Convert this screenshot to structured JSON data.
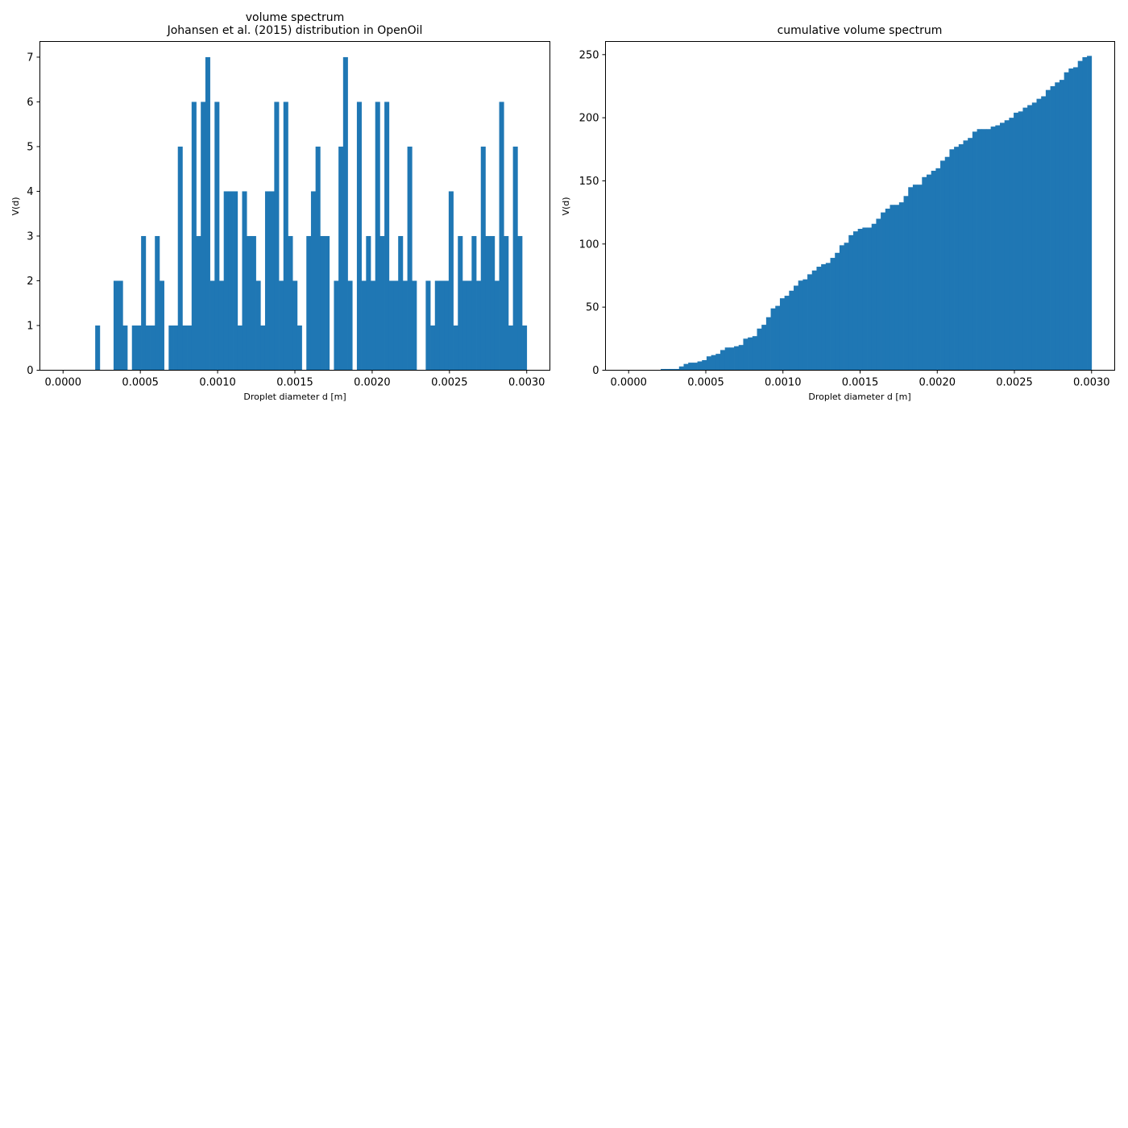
{
  "chart_data": [
    {
      "type": "bar",
      "title": "volume spectrum",
      "subtitle": "Johansen et al. (2015) distribution in OpenOil",
      "xlabel": "Droplet diameter d [m]",
      "ylabel": "V(d)",
      "xlim": [
        -0.00015,
        0.00315
      ],
      "ylim": [
        0,
        7.35
      ],
      "x_ticks": [
        "0.0000",
        "0.0005",
        "0.0010",
        "0.0015",
        "0.0020",
        "0.0025",
        "0.0030"
      ],
      "y_ticks": [
        "0",
        "1",
        "2",
        "3",
        "4",
        "5",
        "6",
        "7"
      ],
      "grid": false,
      "color": "#1f77b4",
      "bin_range": [
        0,
        0.003
      ],
      "values": [
        0,
        0,
        0,
        0,
        0,
        0,
        0,
        1,
        0,
        0,
        0,
        2,
        2,
        1,
        0,
        1,
        1,
        3,
        1,
        1,
        3,
        2,
        0,
        1,
        1,
        5,
        1,
        1,
        6,
        3,
        6,
        7,
        2,
        6,
        2,
        4,
        4,
        4,
        1,
        4,
        3,
        3,
        2,
        1,
        4,
        4,
        6,
        2,
        6,
        3,
        2,
        1,
        0,
        3,
        4,
        5,
        3,
        3,
        0,
        2,
        5,
        7,
        2,
        0,
        6,
        2,
        3,
        2,
        6,
        3,
        6,
        2,
        2,
        3,
        2,
        5,
        2,
        0,
        0,
        2,
        1,
        2,
        2,
        2,
        4,
        1,
        3,
        2,
        2,
        3,
        2,
        5,
        3,
        3,
        2,
        6,
        3,
        1,
        5,
        3,
        1
      ]
    },
    {
      "type": "bar",
      "title": "cumulative volume spectrum",
      "xlabel": "Droplet diameter d [m]",
      "ylabel": "V(d)",
      "xlim": [
        -0.00015,
        0.00315
      ],
      "ylim": [
        0,
        260.4
      ],
      "x_ticks": [
        "0.0000",
        "0.0005",
        "0.0010",
        "0.0015",
        "0.0020",
        "0.0025",
        "0.0030"
      ],
      "y_ticks": [
        "0",
        "50",
        "100",
        "150",
        "200",
        "250"
      ],
      "grid": false,
      "color": "#1f77b4",
      "cumulative": true,
      "bin_range": [
        0,
        0.003
      ]
    }
  ]
}
